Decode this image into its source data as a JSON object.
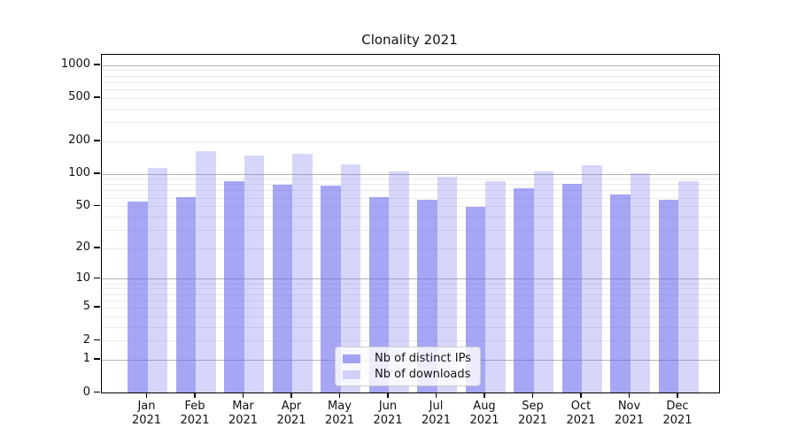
{
  "figure": {
    "title": "Clonality 2021"
  },
  "chart_data": {
    "type": "bar",
    "title": "Clonality 2021",
    "x_categories": [
      "Jan 2021",
      "Feb 2021",
      "Mar 2021",
      "Apr 2021",
      "May 2021",
      "Jun 2021",
      "Jul 2021",
      "Aug 2021",
      "Sep 2021",
      "Oct 2021",
      "Nov 2021",
      "Dec 2021"
    ],
    "series": [
      {
        "name": "Nb of distinct IPs",
        "color": "rgba(102,102,238,0.58)",
        "values": [
          55,
          61,
          85,
          79,
          77,
          61,
          57,
          49,
          74,
          80,
          64,
          57
        ]
      },
      {
        "name": "Nb of downloads",
        "color": "rgba(102,102,238,0.27)",
        "values": [
          113,
          163,
          146,
          152,
          122,
          104,
          94,
          86,
          105,
          119,
          102,
          86
        ]
      }
    ],
    "y_axis": {
      "scale": "symlog-ln(1+v)",
      "range": [
        0,
        1000
      ],
      "ticks": [
        0,
        1,
        2,
        5,
        10,
        20,
        50,
        100,
        200,
        500,
        1000
      ],
      "major_gridlines": [
        1,
        10,
        100,
        1000
      ]
    },
    "x_axis": {
      "tick_label_lines": 2
    },
    "legend": {
      "position": "bottom-center",
      "entries": [
        "Nb of distinct IPs",
        "Nb of downloads"
      ]
    },
    "grid": true
  },
  "colors": {
    "background": "#ffffff",
    "spine": "#000000",
    "major_grid": "#b3b3b3",
    "minor_grid": "#ebebeb",
    "bar_distinct_ips": "rgba(102,102,238,0.58)",
    "bar_downloads": "rgba(102,102,238,0.27)",
    "legend_border": "#cccccc"
  }
}
